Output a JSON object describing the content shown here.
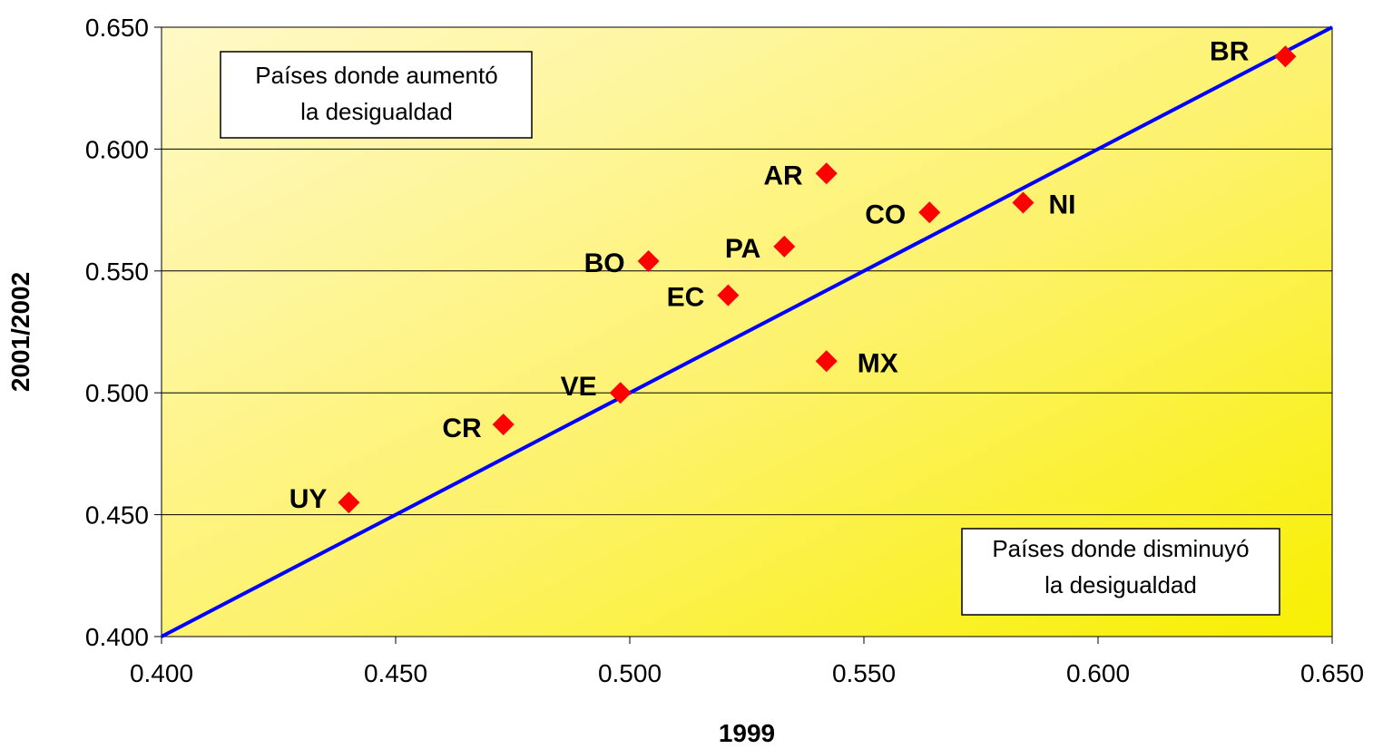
{
  "chart_data": {
    "type": "scatter",
    "title": "",
    "xlabel": "1999",
    "ylabel": "2001/2002",
    "xlim": [
      0.4,
      0.65
    ],
    "ylim": [
      0.4,
      0.65
    ],
    "xticks": [
      "0.400",
      "0.450",
      "0.500",
      "0.550",
      "0.600",
      "0.650"
    ],
    "yticks": [
      "0.400",
      "0.450",
      "0.500",
      "0.550",
      "0.600",
      "0.650"
    ],
    "grid": "horizontal",
    "background": "yellow gradient",
    "marker_color": "#ff0000",
    "line_color": "#0000ff",
    "reference_line": {
      "from": [
        0.4,
        0.4
      ],
      "to": [
        0.65,
        0.65
      ]
    },
    "points": [
      {
        "label": "BR",
        "x": 0.64,
        "y": 0.638
      },
      {
        "label": "AR",
        "x": 0.542,
        "y": 0.59
      },
      {
        "label": "CO",
        "x": 0.564,
        "y": 0.574
      },
      {
        "label": "NI",
        "x": 0.584,
        "y": 0.578
      },
      {
        "label": "PA",
        "x": 0.533,
        "y": 0.56
      },
      {
        "label": "BO",
        "x": 0.504,
        "y": 0.554
      },
      {
        "label": "EC",
        "x": 0.521,
        "y": 0.54
      },
      {
        "label": "MX",
        "x": 0.542,
        "y": 0.513
      },
      {
        "label": "VE",
        "x": 0.498,
        "y": 0.5
      },
      {
        "label": "CR",
        "x": 0.473,
        "y": 0.487
      },
      {
        "label": "UY",
        "x": 0.44,
        "y": 0.455
      }
    ],
    "annotations": [
      {
        "lines": [
          "Países donde aumentó",
          "la desigualdad"
        ]
      },
      {
        "lines": [
          "Países donde disminuyó",
          "la desigualdad"
        ]
      }
    ]
  }
}
